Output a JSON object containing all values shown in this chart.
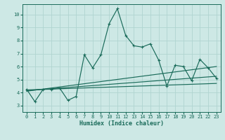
{
  "xlabel": "Humidex (Indice chaleur)",
  "xlim": [
    -0.5,
    23.5
  ],
  "ylim": [
    2.5,
    10.8
  ],
  "yticks": [
    3,
    4,
    5,
    6,
    7,
    8,
    9,
    10
  ],
  "xticks": [
    0,
    1,
    2,
    3,
    4,
    5,
    6,
    7,
    8,
    9,
    10,
    11,
    12,
    13,
    14,
    15,
    16,
    17,
    18,
    19,
    20,
    21,
    22,
    23
  ],
  "bg_color": "#cde8e5",
  "grid_color": "#b0d4d0",
  "line_color": "#1a6b5a",
  "series1_x": [
    0,
    1,
    2,
    3,
    4,
    5,
    6,
    7,
    8,
    9,
    10,
    11,
    12,
    13,
    14,
    15,
    16,
    17,
    18,
    19,
    20,
    21,
    22,
    23
  ],
  "series1_y": [
    4.25,
    3.3,
    4.25,
    4.25,
    4.35,
    3.4,
    3.7,
    6.9,
    5.9,
    6.9,
    9.3,
    10.45,
    8.4,
    7.6,
    7.5,
    7.75,
    6.5,
    4.5,
    6.1,
    6.0,
    4.9,
    6.55,
    5.9,
    5.1
  ],
  "trend1_x": [
    0,
    23
  ],
  "trend1_y": [
    4.15,
    5.25
  ],
  "trend2_x": [
    0,
    23
  ],
  "trend2_y": [
    4.2,
    4.7
  ],
  "trend3_x": [
    0,
    23
  ],
  "trend3_y": [
    4.1,
    6.0
  ]
}
